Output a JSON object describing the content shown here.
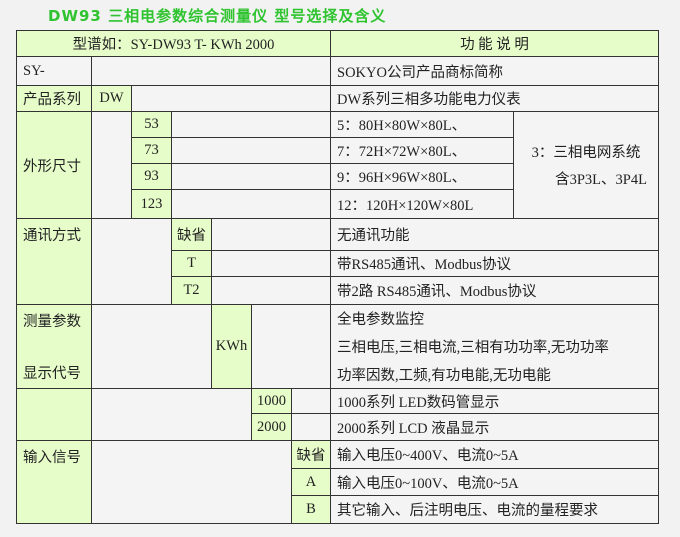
{
  "title": "DW93  三相电参数综合测量仪  型号选择及含义",
  "header": {
    "model_example": "型谱如：SY-DW93 T- KWh  2000",
    "function": "功 能 说 明"
  },
  "rows": {
    "sy": {
      "code": "SY-",
      "desc": "SOKYO公司产品商标简称"
    },
    "series": {
      "label": "产品系列",
      "code": "DW",
      "desc": "DW系列三相多功能电力仪表"
    },
    "size": {
      "label": "外形尺寸",
      "options": [
        {
          "code": "53",
          "desc": "5：80H×80W×80L、"
        },
        {
          "code": "73",
          "desc": "7：72H×72W×80L、"
        },
        {
          "code": "93",
          "desc": "9：96H×96W×80L、"
        },
        {
          "code": "123",
          "desc": "12：120H×120W×80L"
        }
      ],
      "note_line1": "3：三相电网系统",
      "note_line2": "含3P3L、3P4L"
    },
    "comm": {
      "label": "通讯方式",
      "options": [
        {
          "code": "缺省",
          "desc": "无通讯功能"
        },
        {
          "code": "T",
          "desc": "带RS485通讯、Modbus协议"
        },
        {
          "code": "T2",
          "desc": "带2路  RS485通讯、Modbus协议"
        }
      ]
    },
    "measure": {
      "label_top": "测量参数",
      "label_bottom": "显示代号",
      "code": "KWh",
      "desc_lines": [
        "全电参数监控",
        "三相电压,三相电流,三相有功功率,无功功率",
        "功率因数,工频,有功电能,无功电能"
      ]
    },
    "display": {
      "options": [
        {
          "code": "1000",
          "desc": "1000系列 LED数码管显示"
        },
        {
          "code": "2000",
          "desc": "2000系列 LCD  液晶显示"
        }
      ]
    },
    "input": {
      "label": "输入信号",
      "options": [
        {
          "code": "缺省",
          "desc": "输入电压0~400V、电流0~5A"
        },
        {
          "code": "A",
          "desc": "输入电压0~100V、电流0~5A"
        },
        {
          "code": "B",
          "desc": "其它输入、后注明电压、电流的量程要求"
        }
      ]
    }
  },
  "colors": {
    "title": "#2fc42f",
    "highlight_cell": "#e6fcc9",
    "border": "#333333"
  }
}
